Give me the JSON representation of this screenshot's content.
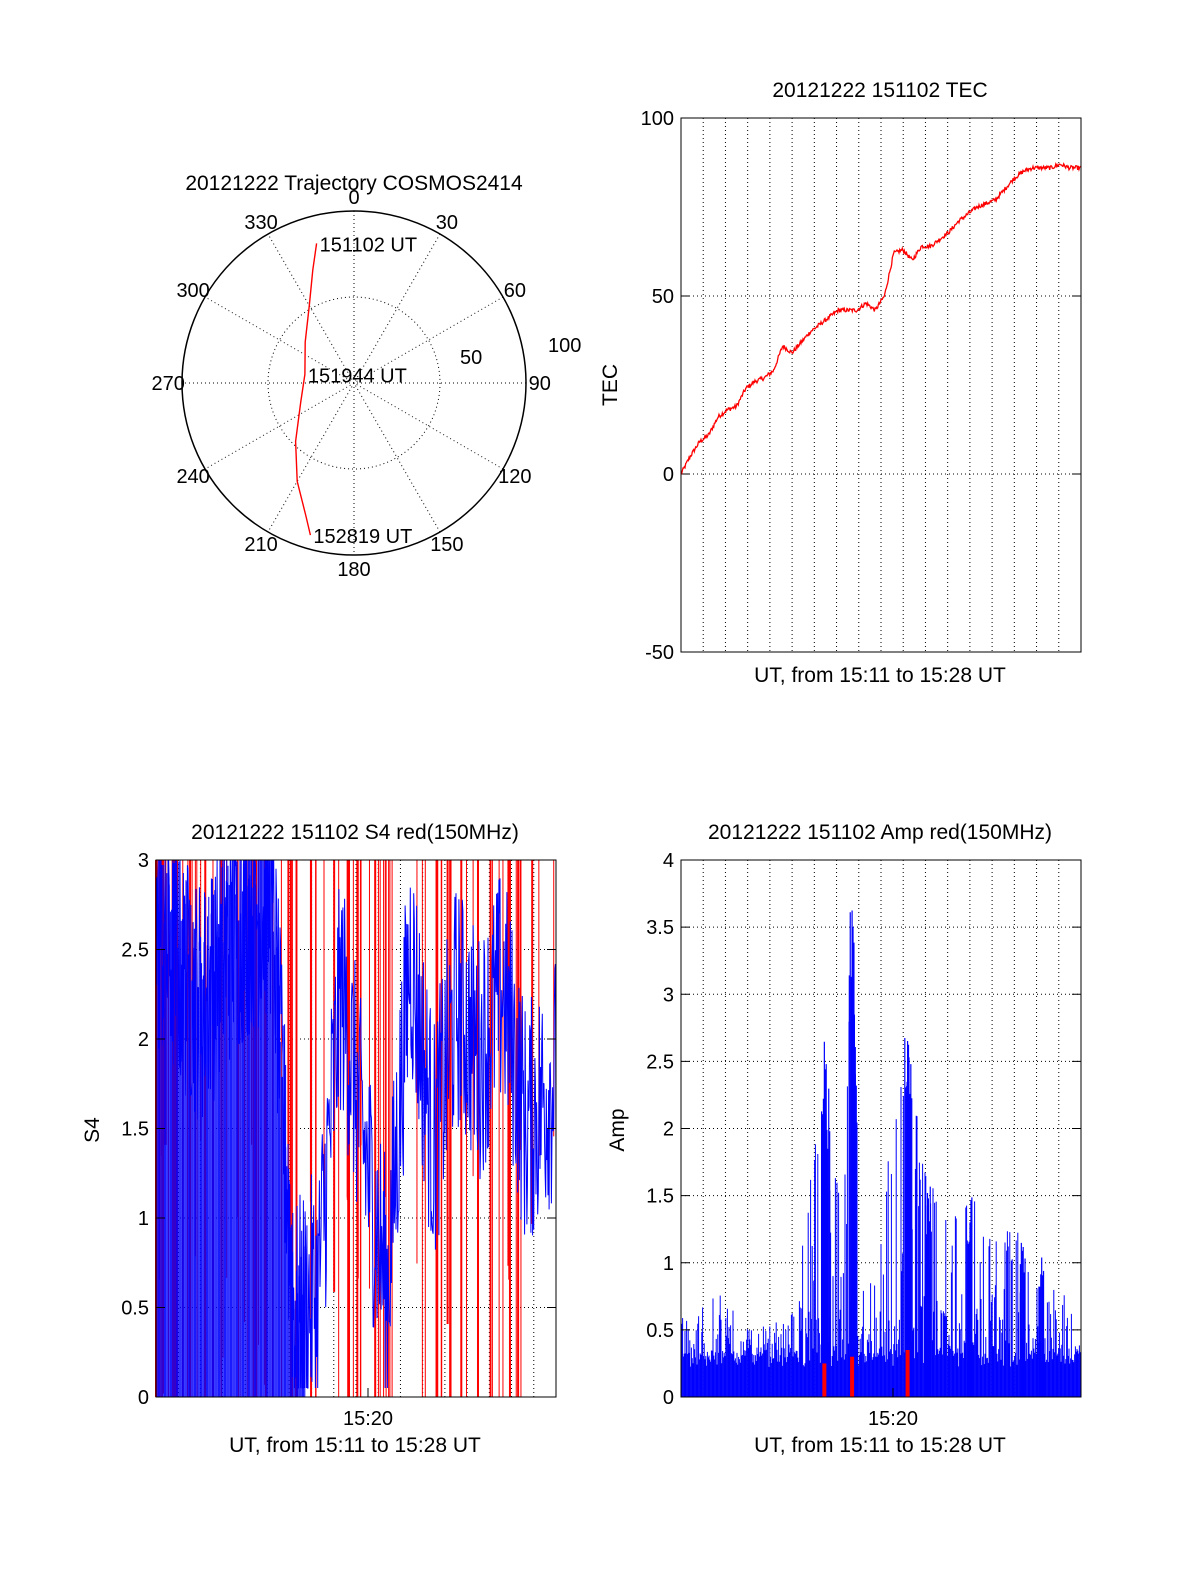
{
  "colors": {
    "red": "#ff0000",
    "blue": "#0000ff",
    "axes": "#000000",
    "background": "#ffffff"
  },
  "chart_data": [
    {
      "id": "trajectory",
      "type": "polar-trajectory",
      "title": "20121222 Trajectory COSMOS2414",
      "azimuth_labels": [
        "0",
        "30",
        "60",
        "90",
        "120",
        "150",
        "180",
        "210",
        "240",
        "270",
        "300",
        "330"
      ],
      "radial_labels": [
        "50",
        "100"
      ],
      "radial_values": [
        50,
        100
      ],
      "radial_range": [
        0,
        100
      ],
      "track_color": "#ff0000",
      "track": [
        {
          "az": 345,
          "r": 84
        },
        {
          "az": 340,
          "r": 70
        },
        {
          "az": 330,
          "r": 52
        },
        {
          "az": 310,
          "r": 37
        },
        {
          "az": 280,
          "r": 29
        },
        {
          "az": 250,
          "r": 33
        },
        {
          "az": 225,
          "r": 48
        },
        {
          "az": 210,
          "r": 66
        },
        {
          "az": 200,
          "r": 82
        },
        {
          "az": 196,
          "r": 92
        }
      ],
      "annotations": [
        {
          "text": "151102 UT",
          "az": 345,
          "r": 84
        },
        {
          "text": "151944 UT",
          "az": 280,
          "r": 29
        },
        {
          "text": "152819 UT",
          "az": 196,
          "r": 92
        }
      ]
    },
    {
      "id": "tec",
      "type": "line",
      "title": "20121222 151102 TEC",
      "xlabel": "UT, from 15:11 to 15:28 UT",
      "ylabel": "TEC",
      "x_unit": "minutes after 15:11:02 UT",
      "xlim": [
        0,
        17.3
      ],
      "ylim": [
        -50,
        100
      ],
      "yticks": [
        -50,
        0,
        50,
        100
      ],
      "ytick_labels": [
        "-50",
        "0",
        "50",
        "100"
      ],
      "x_gridlines": 17,
      "y_gridlines": [
        0,
        50
      ],
      "series": [
        {
          "color": "#ff0000",
          "x": [
            0,
            0.4,
            0.8,
            1.2,
            1.6,
            2.0,
            2.4,
            2.8,
            3.2,
            3.6,
            4.0,
            4.4,
            4.8,
            5.2,
            5.6,
            6.0,
            6.4,
            6.8,
            7.2,
            7.6,
            8.0,
            8.4,
            8.8,
            9.2,
            9.6,
            10.0,
            10.4,
            10.8,
            11.2,
            11.6,
            12.0,
            12.4,
            12.8,
            13.2,
            13.6,
            14.0,
            14.4,
            14.8,
            15.2,
            15.6,
            16.0,
            16.4,
            16.8,
            17.3
          ],
          "y": [
            0,
            5,
            9,
            11,
            16,
            18,
            19,
            24,
            26,
            27,
            29,
            36,
            34,
            37,
            40,
            42,
            44,
            46,
            46,
            46,
            48,
            46,
            50,
            62,
            63,
            60,
            64,
            64,
            66,
            68,
            71,
            73,
            75,
            76,
            77,
            80,
            83,
            85,
            86,
            86,
            86,
            87,
            86,
            86
          ]
        }
      ]
    },
    {
      "id": "s4",
      "type": "line",
      "title": "20121222 151102 S4 red(150MHz)",
      "xlabel": "UT, from 15:11 to 15:28 UT",
      "ylabel": "S4",
      "xtick_labels": [
        "15:20"
      ],
      "xlim": [
        0,
        17.3
      ],
      "ylim": [
        0,
        3
      ],
      "yticks": [
        0,
        0.5,
        1,
        1.5,
        2,
        2.5,
        3
      ],
      "ytick_labels": [
        "0",
        "0.5",
        "1",
        "1.5",
        "2",
        "2.5",
        "3"
      ],
      "series": [
        {
          "color": "#ff0000",
          "description": "dense vertical spikes spanning 0 to 3, concentrated before 15:17 and intermittent after"
        },
        {
          "color": "#0000ff",
          "x": [
            0,
            1,
            2,
            3,
            4,
            5,
            6,
            7,
            8,
            9,
            10,
            11,
            12,
            13,
            14,
            15,
            16,
            17.3
          ],
          "y": [
            2.6,
            2.4,
            2.2,
            2.5,
            2.7,
            2.8,
            0.4,
            0.6,
            2.3,
            1.4,
            0.6,
            2.5,
            1.4,
            2.2,
            1.9,
            2.3,
            1.5,
            1.8
          ]
        }
      ]
    },
    {
      "id": "amp",
      "type": "line",
      "title": "20121222 151102 Amp red(150MHz)",
      "xlabel": "UT, from 15:11 to 15:28 UT",
      "ylabel": "Amp",
      "xtick_labels": [
        "15:20"
      ],
      "xlim": [
        0,
        17.3
      ],
      "ylim": [
        0,
        4
      ],
      "yticks": [
        0,
        0.5,
        1,
        1.5,
        2,
        2.5,
        3,
        3.5,
        4
      ],
      "ytick_labels": [
        "0",
        "0.5",
        "1",
        "1.5",
        "2",
        "2.5",
        "3",
        "3.5",
        "4"
      ],
      "series": [
        {
          "color": "#0000ff",
          "x": [
            0,
            1,
            2,
            3,
            4,
            5,
            6.2,
            6.4,
            7.0,
            7.4,
            7.5,
            8.0,
            9.8,
            9.9,
            10.8,
            12.5,
            14.5,
            15.5,
            17.3
          ],
          "y": [
            0.6,
            0.7,
            0.8,
            0.5,
            0.55,
            0.7,
            2.7,
            2.3,
            1.2,
            3.75,
            2.9,
            0.8,
            2.85,
            2.6,
            1.6,
            1.5,
            1.25,
            1.0,
            0.6
          ]
        },
        {
          "color": "#ff0000",
          "x": [
            6.2,
            7.4,
            9.8
          ],
          "y": [
            0.25,
            0.3,
            0.35
          ]
        }
      ]
    }
  ]
}
